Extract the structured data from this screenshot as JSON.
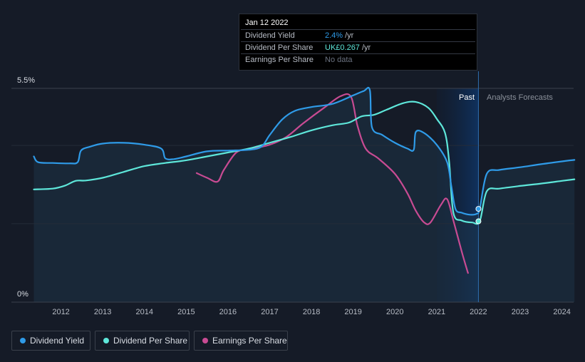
{
  "chart_data": {
    "type": "line",
    "ylim": [
      0,
      5.5
    ],
    "y_ticks": [
      {
        "label": "5.5%",
        "value": 5.5
      },
      {
        "label": "0%",
        "value": 0
      }
    ],
    "x_ticks": [
      "2012",
      "2013",
      "2014",
      "2015",
      "2016",
      "2017",
      "2018",
      "2019",
      "2020",
      "2021",
      "2022",
      "2023",
      "2024"
    ],
    "past_label": "Past",
    "forecast_label": "Analysts Forecasts",
    "grid": true,
    "series": [
      {
        "name": "Dividend Yield",
        "color": "#2f9be8",
        "points": [
          [
            2011.35,
            3.75
          ],
          [
            2011.45,
            3.6
          ],
          [
            2011.8,
            3.58
          ],
          [
            2012.2,
            3.57
          ],
          [
            2012.4,
            3.6
          ],
          [
            2012.48,
            3.9
          ],
          [
            2012.7,
            4.0
          ],
          [
            2013.0,
            4.08
          ],
          [
            2013.5,
            4.1
          ],
          [
            2014.0,
            4.05
          ],
          [
            2014.4,
            3.95
          ],
          [
            2014.5,
            3.7
          ],
          [
            2014.7,
            3.68
          ],
          [
            2015.0,
            3.75
          ],
          [
            2015.5,
            3.88
          ],
          [
            2016.0,
            3.9
          ],
          [
            2016.5,
            3.92
          ],
          [
            2016.8,
            4.0
          ],
          [
            2017.0,
            4.3
          ],
          [
            2017.3,
            4.7
          ],
          [
            2017.6,
            4.92
          ],
          [
            2018.0,
            5.02
          ],
          [
            2018.5,
            5.1
          ],
          [
            2019.0,
            5.32
          ],
          [
            2019.25,
            5.43
          ],
          [
            2019.4,
            5.45
          ],
          [
            2019.45,
            4.5
          ],
          [
            2019.7,
            4.3
          ],
          [
            2020.0,
            4.1
          ],
          [
            2020.3,
            3.95
          ],
          [
            2020.45,
            3.92
          ],
          [
            2020.5,
            4.38
          ],
          [
            2020.7,
            4.35
          ],
          [
            2021.0,
            4.05
          ],
          [
            2021.25,
            3.6
          ],
          [
            2021.35,
            3.0
          ],
          [
            2021.45,
            2.4
          ],
          [
            2021.6,
            2.3
          ],
          [
            2021.8,
            2.25
          ],
          [
            2021.95,
            2.27
          ],
          [
            2022.03,
            2.4
          ],
          [
            2022.2,
            3.3
          ],
          [
            2022.5,
            3.4
          ],
          [
            2023.0,
            3.47
          ],
          [
            2023.5,
            3.55
          ],
          [
            2024.0,
            3.62
          ],
          [
            2024.3,
            3.66
          ]
        ]
      },
      {
        "name": "Dividend Per Share",
        "color": "#5ee7da",
        "points": [
          [
            2011.35,
            2.9
          ],
          [
            2011.8,
            2.92
          ],
          [
            2012.1,
            3.0
          ],
          [
            2012.35,
            3.12
          ],
          [
            2012.6,
            3.13
          ],
          [
            2013.0,
            3.2
          ],
          [
            2013.5,
            3.35
          ],
          [
            2014.0,
            3.5
          ],
          [
            2014.5,
            3.58
          ],
          [
            2015.0,
            3.65
          ],
          [
            2015.5,
            3.75
          ],
          [
            2016.0,
            3.85
          ],
          [
            2016.5,
            3.95
          ],
          [
            2017.0,
            4.1
          ],
          [
            2017.5,
            4.25
          ],
          [
            2018.0,
            4.42
          ],
          [
            2018.5,
            4.55
          ],
          [
            2018.9,
            4.62
          ],
          [
            2019.2,
            4.78
          ],
          [
            2019.5,
            4.82
          ],
          [
            2019.8,
            4.95
          ],
          [
            2020.2,
            5.12
          ],
          [
            2020.5,
            5.15
          ],
          [
            2020.8,
            5.0
          ],
          [
            2021.0,
            4.72
          ],
          [
            2021.2,
            4.35
          ],
          [
            2021.3,
            3.6
          ],
          [
            2021.4,
            2.3
          ],
          [
            2021.6,
            2.1
          ],
          [
            2021.85,
            2.05
          ],
          [
            2022.03,
            2.08
          ],
          [
            2022.2,
            2.85
          ],
          [
            2022.5,
            2.92
          ],
          [
            2023.0,
            2.99
          ],
          [
            2023.5,
            3.05
          ],
          [
            2024.0,
            3.12
          ],
          [
            2024.3,
            3.16
          ]
        ]
      },
      {
        "name": "Earnings Per Share",
        "color": "#c84b93",
        "points": [
          [
            2015.25,
            3.32
          ],
          [
            2015.5,
            3.2
          ],
          [
            2015.75,
            3.1
          ],
          [
            2015.9,
            3.4
          ],
          [
            2016.2,
            3.85
          ],
          [
            2016.5,
            3.93
          ],
          [
            2017.0,
            4.05
          ],
          [
            2017.4,
            4.25
          ],
          [
            2017.8,
            4.6
          ],
          [
            2018.3,
            5.0
          ],
          [
            2018.7,
            5.3
          ],
          [
            2018.95,
            5.28
          ],
          [
            2019.1,
            4.55
          ],
          [
            2019.3,
            3.95
          ],
          [
            2019.6,
            3.7
          ],
          [
            2020.0,
            3.3
          ],
          [
            2020.3,
            2.8
          ],
          [
            2020.5,
            2.35
          ],
          [
            2020.7,
            2.05
          ],
          [
            2020.85,
            2.05
          ],
          [
            2021.1,
            2.5
          ],
          [
            2021.25,
            2.65
          ],
          [
            2021.4,
            2.1
          ],
          [
            2021.6,
            1.3
          ],
          [
            2021.75,
            0.75
          ]
        ]
      }
    ],
    "markers": [
      {
        "series": "Dividend Yield",
        "x": 2022.0,
        "y": 2.4
      },
      {
        "series": "Dividend Per Share",
        "x": 2022.0,
        "y": 2.08
      }
    ]
  },
  "tooltip": {
    "date": "Jan 12 2022",
    "rows": [
      {
        "label": "Dividend Yield",
        "value": "2.4%",
        "unit": "/yr"
      },
      {
        "label": "Dividend Per Share",
        "value": "UK£0.267",
        "unit": "/yr"
      },
      {
        "label": "Earnings Per Share",
        "value": "No data",
        "unit": ""
      }
    ]
  },
  "legend": [
    {
      "label": "Dividend Yield",
      "color": "#2f9be8"
    },
    {
      "label": "Dividend Per Share",
      "color": "#5ee7da"
    },
    {
      "label": "Earnings Per Share",
      "color": "#c84b93"
    }
  ]
}
